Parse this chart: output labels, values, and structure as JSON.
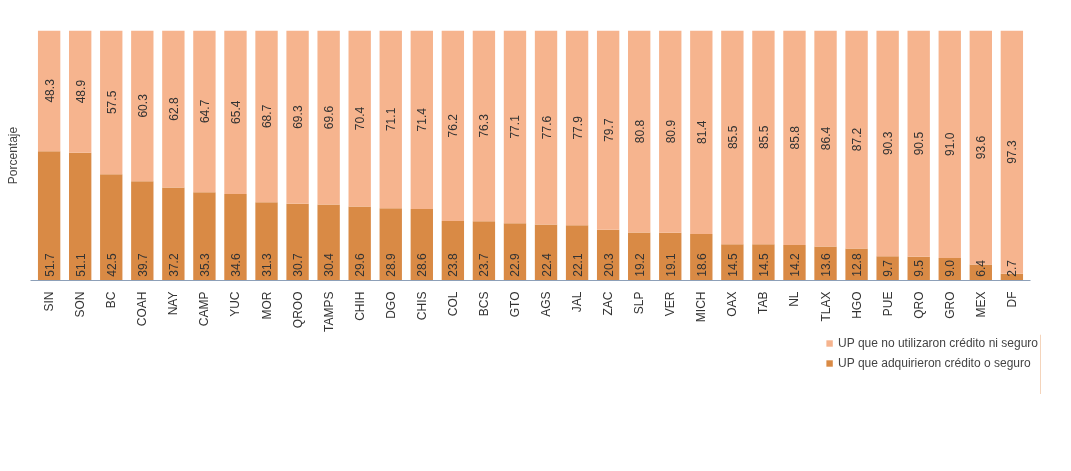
{
  "chart_data": {
    "type": "bar",
    "stacked": true,
    "ylabel": "Porcentaje",
    "legend": "bottom right",
    "categories": [
      "SIN",
      "SON",
      "BC",
      "COAH",
      "NAY",
      "CAMP",
      "YUC",
      "MOR",
      "QROO",
      "TAMPS",
      "CHIH",
      "DGO",
      "CHIS",
      "COL",
      "BCS",
      "GTO",
      "AGS",
      "JAL",
      "ZAC",
      "SLP",
      "VER",
      "MICH",
      "OAX",
      "TAB",
      "NL",
      "TLAX",
      "HGO",
      "PUE",
      "QRO",
      "GRO",
      "MEX",
      "DF"
    ],
    "series": [
      {
        "name": "UP que adquirieron crédito o seguro",
        "color": "#d98a45",
        "values": [
          51.7,
          51.1,
          42.5,
          39.7,
          37.2,
          35.3,
          34.6,
          31.3,
          30.7,
          30.4,
          29.6,
          28.9,
          28.6,
          23.8,
          23.7,
          22.9,
          22.4,
          22.1,
          20.3,
          19.2,
          19.1,
          18.6,
          14.5,
          14.5,
          14.2,
          13.6,
          12.8,
          9.7,
          9.5,
          9.0,
          6.4,
          2.7
        ],
        "value_labels": [
          "51.7",
          "51.1",
          "42.5",
          "39.7",
          "37.2",
          "35.3",
          "34.6",
          "31.3",
          "30.7",
          "30.4",
          "29.6",
          "28.9",
          "28.6",
          "23.8",
          "23.7",
          "22.9",
          "22.4",
          "22.1",
          "20.3",
          "19.2",
          "19.1",
          "18.6",
          "14.5",
          "14.5",
          "14.2",
          "13.6",
          "12.8",
          "9.7",
          "9.5",
          "9.0",
          "6.4",
          "2.7"
        ]
      },
      {
        "name": "UP que no utilizaron crédito ni seguro",
        "color": "#f6b48e",
        "values": [
          48.3,
          48.9,
          57.5,
          60.3,
          62.8,
          64.7,
          65.4,
          68.7,
          69.3,
          69.6,
          70.4,
          71.1,
          71.4,
          76.2,
          76.3,
          77.1,
          77.6,
          77.9,
          79.7,
          80.8,
          80.9,
          81.4,
          85.5,
          85.5,
          85.8,
          86.4,
          87.2,
          90.3,
          90.5,
          91.0,
          93.6,
          97.3
        ],
        "value_labels": [
          "48.3",
          "48.9",
          "57.5",
          "60.3",
          "62.8",
          "64.7",
          "65.4",
          "68.7",
          "69.3",
          "69.6",
          "70.4",
          "71.1",
          "71.4",
          "76.2",
          "76.3",
          "77.1",
          "77.6",
          "77.9",
          "79.7",
          "80.8",
          "80.9",
          "81.4",
          "85.5",
          "85.5",
          "85.8",
          "86.4",
          "87.2",
          "90.3",
          "90.5",
          "91.0",
          "93.6",
          "97.3"
        ]
      }
    ]
  }
}
